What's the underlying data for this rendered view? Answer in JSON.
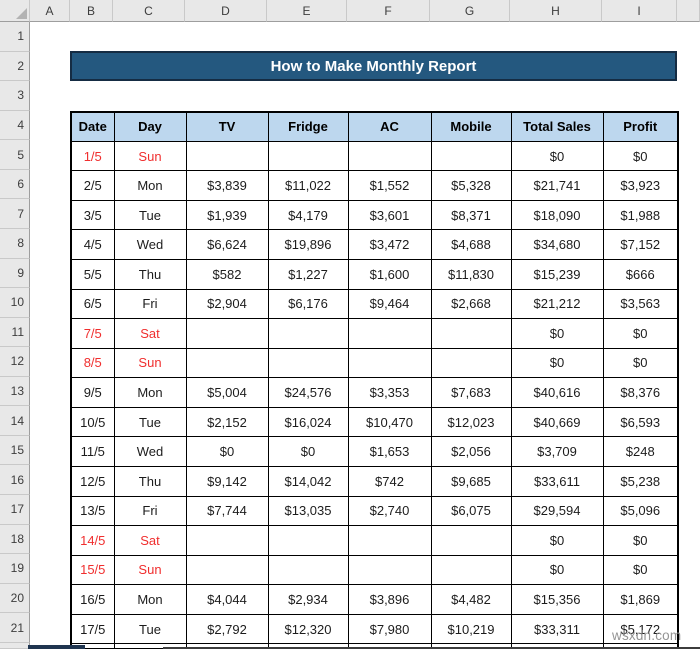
{
  "banner": {
    "title": "How to Make Monthly Report"
  },
  "watermark": "wsxdn.com",
  "grid": {
    "column_labels": [
      "A",
      "B",
      "C",
      "D",
      "E",
      "F",
      "G",
      "H",
      "I",
      ""
    ],
    "row_labels": [
      "1",
      "2",
      "3",
      "4",
      "5",
      "6",
      "7",
      "8",
      "9",
      "10",
      "11",
      "12",
      "13",
      "14",
      "15",
      "16",
      "17",
      "18",
      "19",
      "20",
      "21"
    ]
  },
  "report": {
    "columns": [
      "Date",
      "Day",
      "TV",
      "Fridge",
      "AC",
      "Mobile",
      "Total Sales",
      "Profit"
    ],
    "rows": [
      [
        "1/5",
        "Sun",
        "",
        "",
        "",
        "",
        "$0",
        "$0"
      ],
      [
        "2/5",
        "Mon",
        "$3,839",
        "$11,022",
        "$1,552",
        "$5,328",
        "$21,741",
        "$3,923"
      ],
      [
        "3/5",
        "Tue",
        "$1,939",
        "$4,179",
        "$3,601",
        "$8,371",
        "$18,090",
        "$1,988"
      ],
      [
        "4/5",
        "Wed",
        "$6,624",
        "$19,896",
        "$3,472",
        "$4,688",
        "$34,680",
        "$7,152"
      ],
      [
        "5/5",
        "Thu",
        "$582",
        "$1,227",
        "$1,600",
        "$11,830",
        "$15,239",
        "$666"
      ],
      [
        "6/5",
        "Fri",
        "$2,904",
        "$6,176",
        "$9,464",
        "$2,668",
        "$21,212",
        "$3,563"
      ],
      [
        "7/5",
        "Sat",
        "",
        "",
        "",
        "",
        "$0",
        "$0"
      ],
      [
        "8/5",
        "Sun",
        "",
        "",
        "",
        "",
        "$0",
        "$0"
      ],
      [
        "9/5",
        "Mon",
        "$5,004",
        "$24,576",
        "$3,353",
        "$7,683",
        "$40,616",
        "$8,376"
      ],
      [
        "10/5",
        "Tue",
        "$2,152",
        "$16,024",
        "$10,470",
        "$12,023",
        "$40,669",
        "$6,593"
      ],
      [
        "11/5",
        "Wed",
        "$0",
        "$0",
        "$1,653",
        "$2,056",
        "$3,709",
        "$248"
      ],
      [
        "12/5",
        "Thu",
        "$9,142",
        "$14,042",
        "$742",
        "$9,685",
        "$33,611",
        "$5,238"
      ],
      [
        "13/5",
        "Fri",
        "$7,744",
        "$13,035",
        "$2,740",
        "$6,075",
        "$29,594",
        "$5,096"
      ],
      [
        "14/5",
        "Sat",
        "",
        "",
        "",
        "",
        "$0",
        "$0"
      ],
      [
        "15/5",
        "Sun",
        "",
        "",
        "",
        "",
        "$0",
        "$0"
      ],
      [
        "16/5",
        "Mon",
        "$4,044",
        "$2,934",
        "$3,896",
        "$4,482",
        "$15,356",
        "$1,869"
      ],
      [
        "17/5",
        "Tue",
        "$2,792",
        "$12,320",
        "$7,980",
        "$10,219",
        "$33,311",
        "$5,172"
      ]
    ],
    "weekend_row_indexes": [
      0,
      6,
      7,
      13,
      14
    ]
  },
  "colors": {
    "banner_bg": "#24587f",
    "banner_border": "#152c43",
    "table_header_bg": "#bdd7ee",
    "weekend_text": "#f02e2e",
    "sheet_header_bg": "#e8e8e8",
    "watermark_text": "#8f8f8f"
  }
}
